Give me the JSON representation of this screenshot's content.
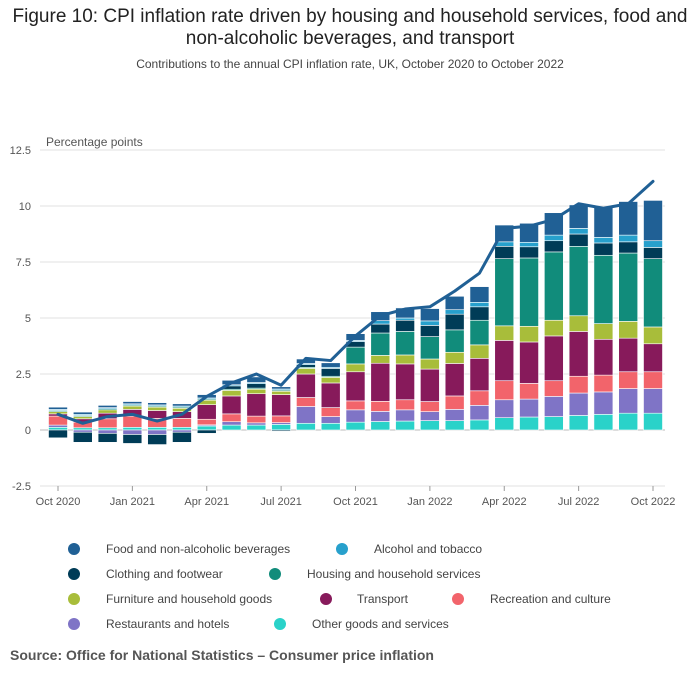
{
  "chart_data": {
    "type": "bar",
    "stacked": true,
    "title": "Figure 10: CPI inflation rate driven by housing and household services, food and non-alcoholic beverages, and transport",
    "subtitle": "Contributions to the annual CPI inflation rate, UK, October 2020 to October 2022",
    "ylabel": "Percentage points",
    "ylim": [
      -2.5,
      12.5
    ],
    "yticks": [
      -2.5,
      0,
      2.5,
      5,
      7.5,
      10,
      12.5
    ],
    "ytick_labels": [
      "-2.5",
      "0",
      "2.5",
      "5",
      "7.5",
      "10",
      "12.5"
    ],
    "xtick_labels": [
      "Oct 2020",
      "Jan 2021",
      "Apr 2021",
      "Jul 2021",
      "Oct 2021",
      "Jan 2022",
      "Apr 2022",
      "Jul 2022",
      "Oct 2022"
    ],
    "xtick_index": [
      0,
      3,
      6,
      9,
      12,
      15,
      18,
      21,
      24
    ],
    "categories": [
      "Oct 2020",
      "Nov 2020",
      "Dec 2020",
      "Jan 2021",
      "Feb 2021",
      "Mar 2021",
      "Apr 2021",
      "May 2021",
      "Jun 2021",
      "Jul 2021",
      "Aug 2021",
      "Sep 2021",
      "Oct 2021",
      "Nov 2021",
      "Dec 2021",
      "Jan 2022",
      "Feb 2022",
      "Mar 2022",
      "Apr 2022",
      "May 2022",
      "Jun 2022",
      "Jul 2022",
      "Aug 2022",
      "Sep 2022",
      "Oct 2022"
    ],
    "series": [
      {
        "name": "Other goods and services",
        "color": "#2ad2c9",
        "values": [
          0.12,
          0.1,
          0.1,
          0.12,
          0.12,
          0.12,
          0.18,
          0.22,
          0.22,
          0.25,
          0.3,
          0.3,
          0.35,
          0.38,
          0.4,
          0.42,
          0.42,
          0.45,
          0.55,
          0.58,
          0.6,
          0.65,
          0.7,
          0.75,
          0.75
        ]
      },
      {
        "name": "Restaurants and hotels",
        "color": "#7f74c6",
        "values": [
          0.1,
          -0.1,
          -0.15,
          -0.2,
          -0.2,
          -0.1,
          0.05,
          0.15,
          0.1,
          0.08,
          0.75,
          0.3,
          0.55,
          0.45,
          0.5,
          0.4,
          0.5,
          0.65,
          0.8,
          0.8,
          0.9,
          1.0,
          1.0,
          1.1,
          1.1
        ]
      },
      {
        "name": "Recreation and culture",
        "color": "#f2646b",
        "values": [
          0.4,
          0.25,
          0.4,
          0.5,
          0.4,
          0.4,
          0.25,
          0.35,
          0.3,
          0.3,
          0.4,
          0.4,
          0.4,
          0.45,
          0.45,
          0.45,
          0.6,
          0.65,
          0.85,
          0.7,
          0.7,
          0.75,
          0.75,
          0.75,
          0.75
        ]
      },
      {
        "name": "Transport",
        "color": "#871a5b",
        "values": [
          0.1,
          0.15,
          0.25,
          0.3,
          0.35,
          0.3,
          0.65,
          0.8,
          1.0,
          0.95,
          1.05,
          1.1,
          1.3,
          1.7,
          1.6,
          1.45,
          1.45,
          1.45,
          1.8,
          1.85,
          2.0,
          2.0,
          1.6,
          1.5,
          1.25
        ]
      },
      {
        "name": "Furniture and household goods",
        "color": "#a8bd3a",
        "values": [
          0.1,
          0.1,
          0.15,
          0.15,
          0.15,
          0.15,
          0.2,
          0.25,
          0.2,
          0.15,
          0.25,
          0.25,
          0.35,
          0.35,
          0.4,
          0.45,
          0.5,
          0.6,
          0.65,
          0.7,
          0.7,
          0.7,
          0.7,
          0.75,
          0.75
        ]
      },
      {
        "name": "Housing and household services",
        "color": "#118c7b",
        "values": [
          0.05,
          0.05,
          0.05,
          0.05,
          0.05,
          0.05,
          0.05,
          0.05,
          0.05,
          0.05,
          0.05,
          0.05,
          0.75,
          1.0,
          1.05,
          1.0,
          1.0,
          1.1,
          3.0,
          3.05,
          3.05,
          3.1,
          3.05,
          3.05,
          3.05
        ]
      },
      {
        "name": "Clothing and footwear",
        "color": "#003c57",
        "values": [
          -0.35,
          -0.45,
          -0.4,
          -0.4,
          -0.45,
          -0.45,
          -0.15,
          0.15,
          0.2,
          -0.05,
          0.12,
          0.35,
          0.25,
          0.4,
          0.5,
          0.5,
          0.7,
          0.6,
          0.55,
          0.5,
          0.5,
          0.55,
          0.55,
          0.5,
          0.5
        ]
      },
      {
        "name": "Alcohol and tobacco",
        "color": "#27a0cc",
        "values": [
          0.05,
          0.05,
          0.05,
          0.05,
          0.05,
          0.05,
          0.05,
          0.05,
          0.05,
          0.05,
          0.05,
          0.05,
          0.05,
          0.15,
          0.1,
          0.2,
          0.2,
          0.2,
          0.2,
          0.2,
          0.25,
          0.25,
          0.25,
          0.3,
          0.3
        ]
      },
      {
        "name": "Food and non-alcoholic beverages",
        "color": "#206095",
        "values": [
          0.1,
          0.1,
          0.1,
          0.1,
          0.1,
          0.1,
          0.15,
          0.2,
          0.25,
          0.1,
          0.2,
          0.2,
          0.3,
          0.4,
          0.45,
          0.55,
          0.6,
          0.7,
          0.75,
          0.85,
          1.0,
          1.05,
          1.35,
          1.5,
          1.8
        ]
      }
    ],
    "line": {
      "name": "CPI inflation rate",
      "color": "#206095",
      "values": [
        0.7,
        0.3,
        0.6,
        0.7,
        0.4,
        0.7,
        1.5,
        2.1,
        2.5,
        2.0,
        3.2,
        3.1,
        4.2,
        5.1,
        5.4,
        5.5,
        6.2,
        7.0,
        9.0,
        9.1,
        9.4,
        10.1,
        9.9,
        10.1,
        11.1
      ]
    }
  },
  "legend": [
    {
      "label": "Food and non-alcoholic beverages",
      "color": "#206095"
    },
    {
      "label": "Alcohol and tobacco",
      "color": "#27a0cc"
    },
    {
      "label": "Clothing and footwear",
      "color": "#003c57"
    },
    {
      "label": "Housing and household services",
      "color": "#118c7b"
    },
    {
      "label": "Furniture and household goods",
      "color": "#a8bd3a"
    },
    {
      "label": "Transport",
      "color": "#871a5b"
    },
    {
      "label": "Recreation and culture",
      "color": "#f2646b"
    },
    {
      "label": "Restaurants and hotels",
      "color": "#7f74c6"
    },
    {
      "label": "Other goods and services",
      "color": "#2ad2c9"
    }
  ],
  "source": "Source: Office for National Statistics – Consumer price inflation"
}
